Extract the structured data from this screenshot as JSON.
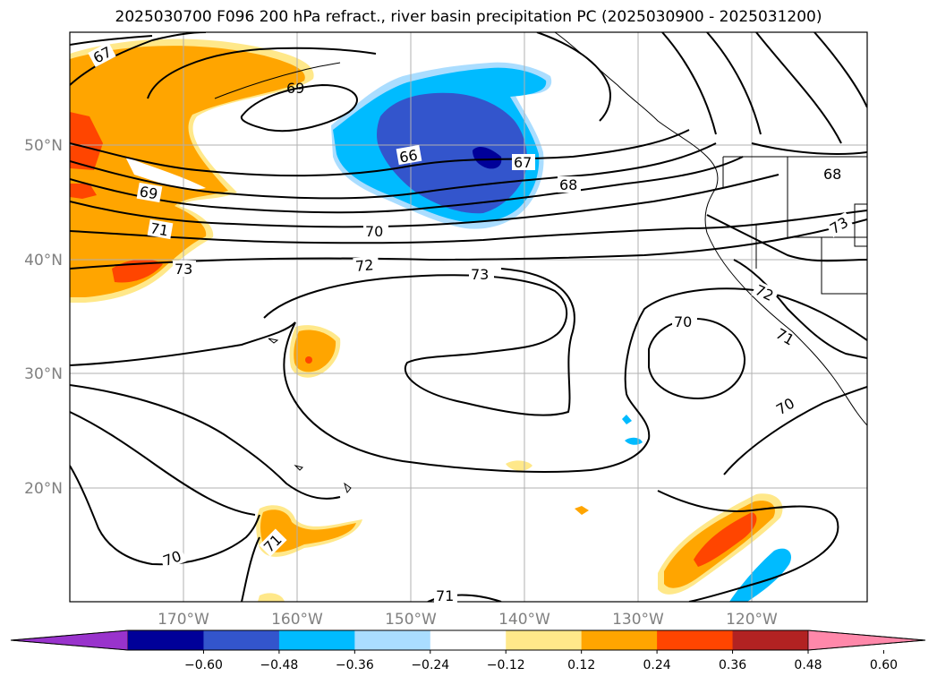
{
  "title": "2025030700 F096 200 hPa refract., river basin precipitation PC (2025030900 - 2025031200)",
  "lat_labels": [
    "50°N",
    "40°N",
    "30°N",
    "20°N"
  ],
  "lon_labels": [
    "170°W",
    "160°W",
    "150°W",
    "140°W",
    "130°W",
    "120°W"
  ],
  "contour_labels": [
    "67",
    "68",
    "69",
    "66",
    "67",
    "68",
    "69",
    "70",
    "71",
    "72",
    "73",
    "73",
    "70",
    "71",
    "72",
    "73",
    "70",
    "71",
    "70",
    "71"
  ],
  "colorbar": {
    "ticks": [
      "−0.60",
      "−0.48",
      "−0.36",
      "−0.24",
      "−0.12",
      "0.12",
      "0.24",
      "0.36",
      "0.48",
      "0.60"
    ],
    "colors": [
      "#9933cc",
      "#000099",
      "#3355cc",
      "#00bbff",
      "#aaddff",
      "#ffffff",
      "#ffe88a",
      "#ffa500",
      "#ff4500",
      "#b22222",
      "#ff88aa"
    ]
  }
}
